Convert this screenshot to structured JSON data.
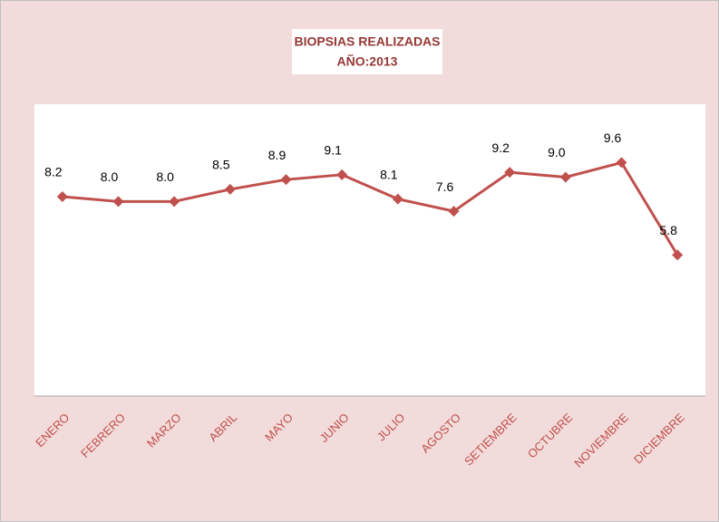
{
  "chart_data": {
    "type": "line",
    "title": "BIOPSIAS REALIZADAS",
    "subtitle": "AÑO:2013",
    "categories": [
      "ENERO",
      "FEBRERO",
      "MARZO",
      "ABRIL",
      "MAYO",
      "JUNIO",
      "JULIO",
      "AGOSTO",
      "SETIEMBRE",
      "OCTUBRE",
      "NOVIEMBRE",
      "DICIEMBRE"
    ],
    "values": [
      8.2,
      8.0,
      8.0,
      8.5,
      8.9,
      9.1,
      8.1,
      7.6,
      9.2,
      9.0,
      9.6,
      5.8
    ],
    "value_labels": [
      "8.2",
      "8.0",
      "8.0",
      "8.5",
      "8.9",
      "9.1",
      "8.1",
      "7.6",
      "9.2",
      "9.0",
      "9.6",
      "5.8"
    ],
    "color": "#c0504d",
    "ylim": [
      0,
      12
    ]
  }
}
